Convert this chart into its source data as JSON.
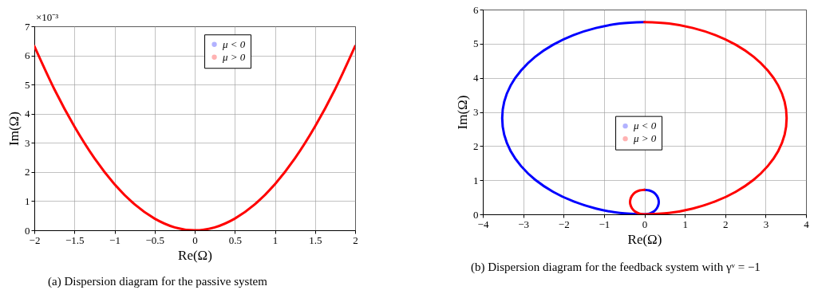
{
  "chart_data": [
    {
      "type": "line",
      "title": "(a) Dispersion diagram for the passive system",
      "xlabel": "Re(Ω)",
      "ylabel": "Im(Ω)",
      "annotations": [
        "×10⁻³"
      ],
      "x": [
        -2,
        -1.75,
        -1.5,
        -1.25,
        -1,
        -0.75,
        -0.5,
        -0.25,
        0,
        0.25,
        0.5,
        0.75,
        1,
        1.25,
        1.5,
        1.75,
        2
      ],
      "series": [
        {
          "name": "μ < 0",
          "color": "#0000ff",
          "values": [
            null,
            null,
            null,
            null,
            null,
            null,
            null,
            null,
            null,
            null,
            null,
            null,
            null,
            null,
            null,
            null,
            null
          ]
        },
        {
          "name": "μ > 0",
          "color": "#ff0000",
          "values": [
            6.32,
            4.84,
            3.56,
            2.47,
            1.58,
            0.89,
            0.4,
            0.1,
            0,
            0.1,
            0.4,
            0.89,
            1.58,
            2.47,
            3.56,
            4.84,
            6.32
          ]
        }
      ],
      "xlim": [
        -2,
        2
      ],
      "xticks": [
        -2,
        -1.5,
        -1,
        -0.5,
        0,
        0.5,
        1,
        1.5,
        2
      ],
      "ylim": [
        0,
        7
      ],
      "yticks": [
        0,
        1,
        2,
        3,
        4,
        5,
        6,
        7
      ],
      "grid": true,
      "legend": "top"
    },
    {
      "type": "line",
      "title": "(b) Dispersion diagram for the feedback system with γᵛ = −1",
      "xlabel": "Re(Ω)",
      "ylabel": "Im(Ω)",
      "series": [
        {
          "name": "μ < 0",
          "color": "#0000ff",
          "x": [
            0,
            -0.61,
            -1.2,
            -1.76,
            -2.26,
            -2.7,
            -3.05,
            -3.31,
            -3.47,
            -3.52,
            -3.47,
            -3.31,
            -3.05,
            -2.7,
            -2.26,
            -1.76,
            -1.2,
            -0.61,
            0,
            null,
            0,
            0.12,
            0.23,
            0.31,
            0.35,
            0.35,
            0.31,
            0.23,
            0.12,
            0
          ],
          "values": [
            5.63,
            5.59,
            5.46,
            5.25,
            4.97,
            4.62,
            4.22,
            3.78,
            3.3,
            2.82,
            2.33,
            1.85,
            1.41,
            1.01,
            0.66,
            0.38,
            0.17,
            0.04,
            0,
            null,
            0.72,
            0.7,
            0.64,
            0.54,
            0.42,
            0.3,
            0.18,
            0.08,
            0.02,
            0
          ]
        },
        {
          "name": "μ > 0",
          "color": "#ff0000",
          "x": [
            0,
            0.61,
            1.2,
            1.76,
            2.26,
            2.7,
            3.05,
            3.31,
            3.47,
            3.52,
            3.47,
            3.31,
            3.05,
            2.7,
            2.26,
            1.76,
            1.2,
            0.61,
            0,
            null,
            0,
            -0.12,
            -0.23,
            -0.31,
            -0.35,
            -0.35,
            -0.31,
            -0.23,
            -0.12,
            0
          ],
          "values": [
            5.63,
            5.59,
            5.46,
            5.25,
            4.97,
            4.62,
            4.22,
            3.78,
            3.3,
            2.82,
            2.33,
            1.85,
            1.41,
            1.01,
            0.66,
            0.38,
            0.17,
            0.04,
            0,
            null,
            0.72,
            0.7,
            0.64,
            0.54,
            0.42,
            0.3,
            0.18,
            0.08,
            0.02,
            0
          ]
        }
      ],
      "xlim": [
        -4,
        4
      ],
      "xticks": [
        -4,
        -3,
        -2,
        -1,
        0,
        1,
        2,
        3,
        4
      ],
      "ylim": [
        0,
        6
      ],
      "yticks": [
        0,
        1,
        2,
        3,
        4,
        5,
        6
      ],
      "grid": true,
      "legend": "center"
    }
  ]
}
